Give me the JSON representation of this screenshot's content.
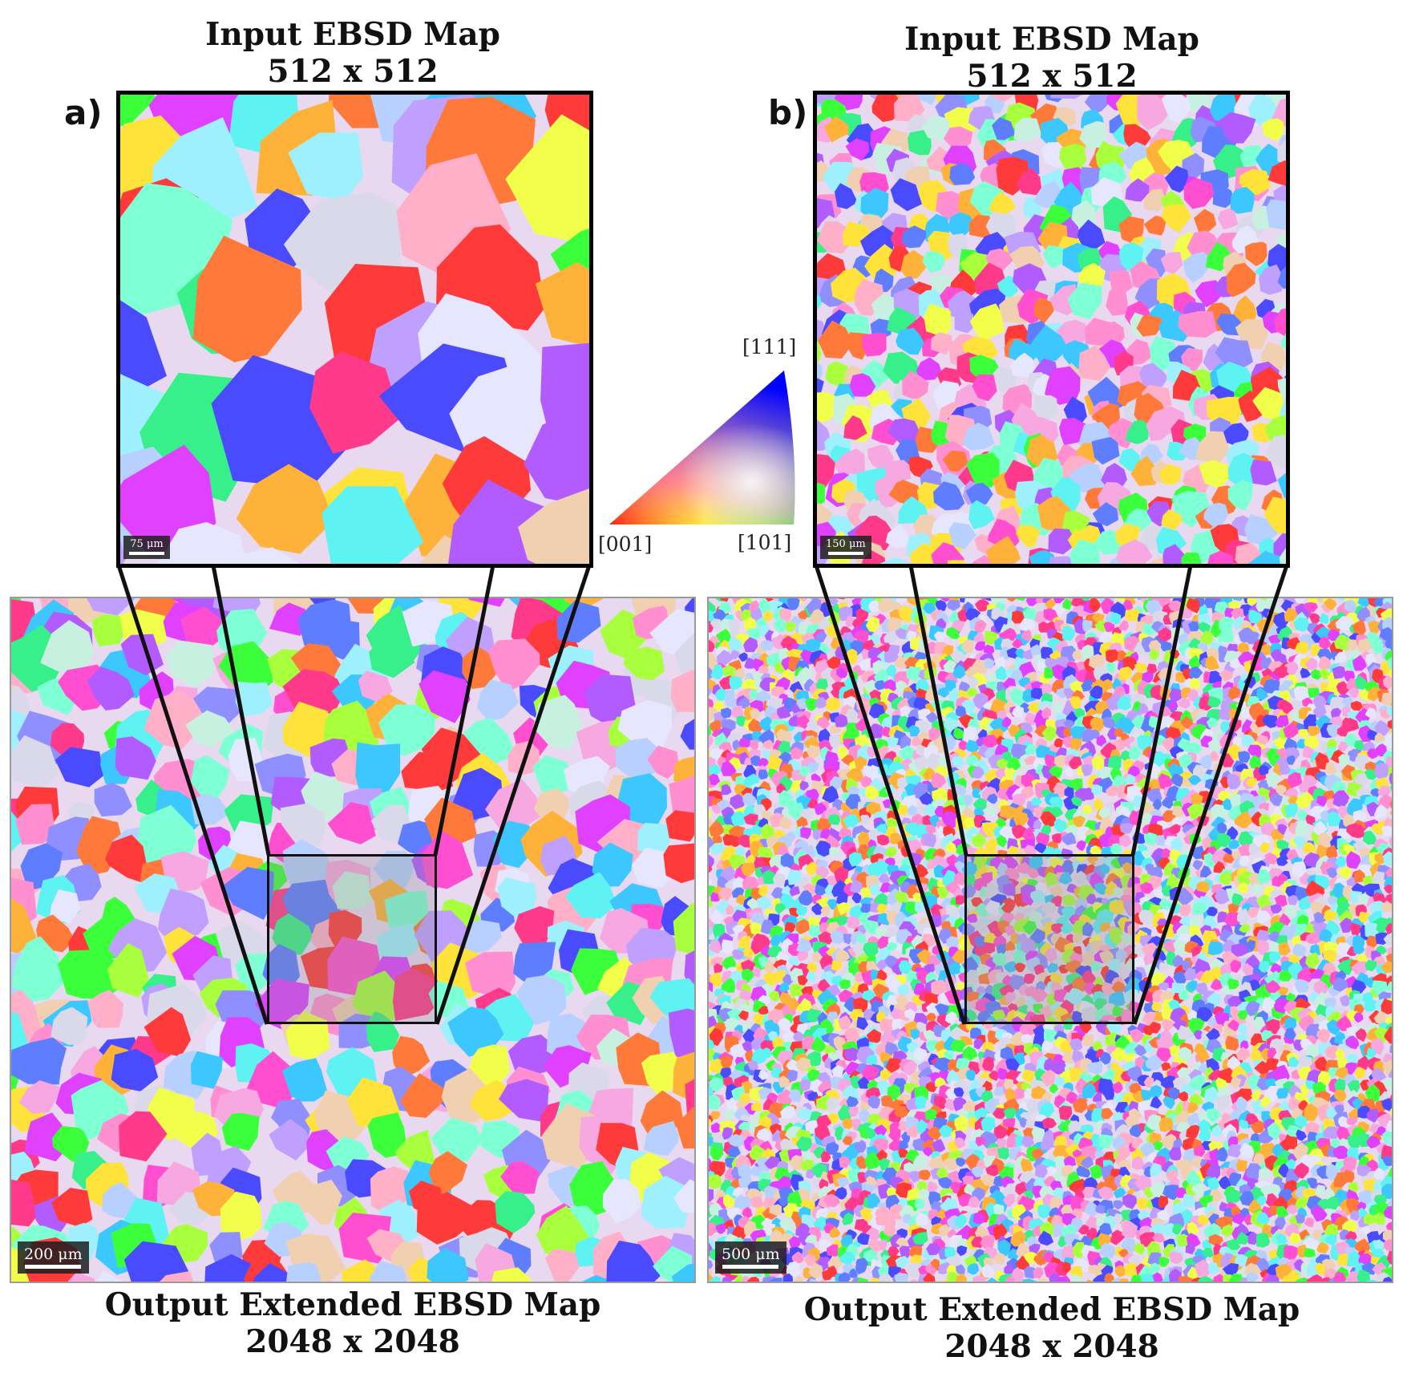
{
  "panel_a": {
    "letter": "a)",
    "input_title": "Input EBSD Map",
    "input_size": "512 x 512",
    "input_scale": "75 μm",
    "output_title": "Output Extended EBSD Map",
    "output_size": "2048 x 2048",
    "output_scale": "200 μm"
  },
  "panel_b": {
    "letter": "b)",
    "input_title": "Input EBSD Map",
    "input_size": "512 x 512",
    "input_scale": "150 μm",
    "output_title": "Output Extended EBSD Map",
    "output_size": "2048 x 2048",
    "output_scale": "500 μm"
  },
  "legend": {
    "vertex_111": "[111]",
    "vertex_001": "[001]",
    "vertex_101": "[101]",
    "colors": {
      "c001": "#ff0000",
      "c101": "#00ff00",
      "c111": "#0000ff"
    }
  },
  "palette": [
    "#ff4fd0",
    "#e040ff",
    "#b25bff",
    "#8f8fff",
    "#5f7dff",
    "#4a4aff",
    "#3cc8ff",
    "#5ef2f2",
    "#7fffd4",
    "#38f08a",
    "#3cff3c",
    "#a8ff3c",
    "#f2ff4a",
    "#ffe23a",
    "#ffb23a",
    "#ff7a3a",
    "#ff3a3a",
    "#ff3a8a",
    "#f7a8e0",
    "#d9d9ea",
    "#c8f0e0",
    "#f0d0b0",
    "#ffb0c8",
    "#b8d0ff",
    "#e6e6ff",
    "#ff8fd0",
    "#c0a0ff",
    "#9ff0ff"
  ]
}
